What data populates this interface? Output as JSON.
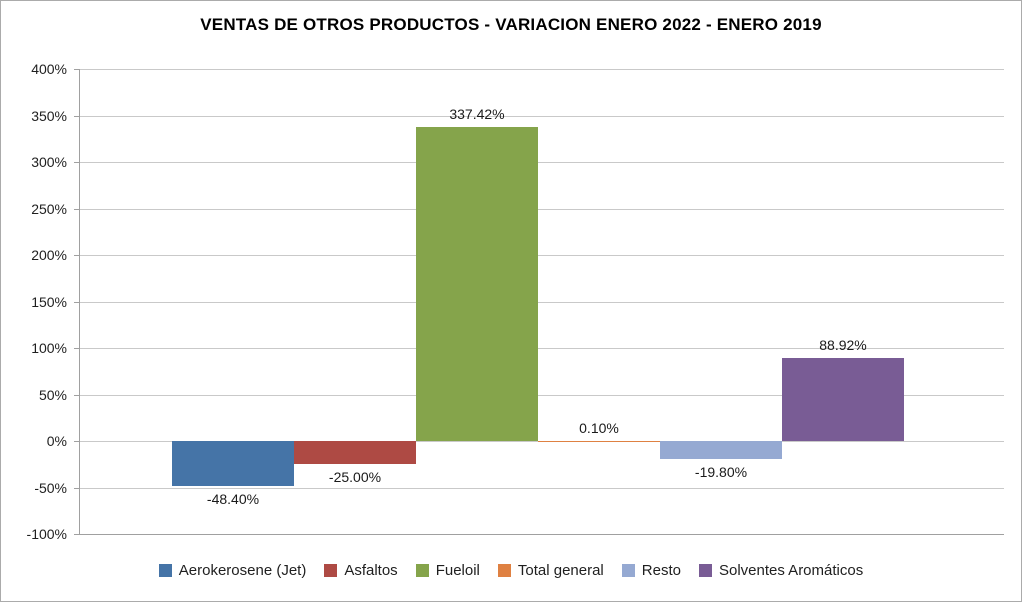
{
  "chart_data": {
    "type": "bar",
    "title": "VENTAS DE OTROS PRODUCTOS - VARIACION ENERO 2022 - ENERO 2019",
    "categories": [
      "Aerokerosene (Jet)",
      "Asfaltos",
      "Fueloil",
      "Total general",
      "Resto",
      "Solventes Aromáticos"
    ],
    "values": [
      -48.4,
      -25.0,
      337.42,
      0.1,
      -19.8,
      88.92
    ],
    "data_labels": [
      "-48.40%",
      "-25.00%",
      "337.42%",
      "0.10%",
      "-19.80%",
      "88.92%"
    ],
    "colors": [
      "#4574A7",
      "#AE4A44",
      "#85A44B",
      "#DF8142",
      "#95A9D2",
      "#795C95"
    ],
    "xlabel": "",
    "ylabel": "",
    "ylim": [
      -100,
      400
    ],
    "ytick_step": 50,
    "ytick_labels": [
      "400%",
      "350%",
      "300%",
      "250%",
      "200%",
      "150%",
      "100%",
      "50%",
      "0%",
      "-50%",
      "-100%"
    ],
    "grid": true,
    "legend_position": "bottom"
  }
}
